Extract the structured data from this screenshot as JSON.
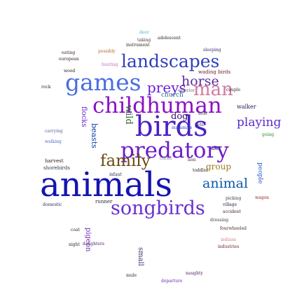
{
  "word_cloud": {
    "words": [
      {
        "text": "animals",
        "color": "#1515b0"
      },
      {
        "text": "songbirds",
        "color": "#6a2fd1"
      },
      {
        "text": "birds",
        "color": "#4b20c4"
      },
      {
        "text": "predatory",
        "color": "#6d1cc9"
      },
      {
        "text": "childhuman",
        "color": "#8a12c6"
      },
      {
        "text": "games",
        "color": "#4a6ee0"
      },
      {
        "text": "landscapes",
        "color": "#2f3fc0"
      },
      {
        "text": "family",
        "color": "#6b4a12"
      },
      {
        "text": "preys",
        "color": "#6a1fd8"
      },
      {
        "text": "man",
        "color": "#d07aa0"
      },
      {
        "text": "horse",
        "color": "#5a2aa0"
      },
      {
        "text": "playing",
        "color": "#5a2ad0"
      },
      {
        "text": "animal",
        "color": "#0b5aa8"
      },
      {
        "text": "dog",
        "color": "#3a0a6a"
      },
      {
        "text": "group",
        "color": "#9a7a1a"
      },
      {
        "text": "wading birds",
        "color": "#6a1a2a"
      },
      {
        "text": "church",
        "color": "#2a6a8a"
      },
      {
        "text": "walker",
        "color": "#1a1a5a"
      },
      {
        "text": "harvest",
        "color": "#3a1a1a"
      },
      {
        "text": "shorebirds",
        "color": "#2a3a4a"
      },
      {
        "text": "runner",
        "color": "#2a2a2a"
      },
      {
        "text": "toddler",
        "color": "#1a1a1a"
      },
      {
        "text": "daughters",
        "color": "#4a1a6a"
      },
      {
        "text": "mule",
        "color": "#2a1a2a"
      },
      {
        "text": "departure",
        "color": "#6a2ab0"
      },
      {
        "text": "naughty",
        "color": "#4a1a5a"
      },
      {
        "text": "wagon",
        "color": "#8a1a1a"
      },
      {
        "text": "village",
        "color": "#1a1a4a"
      },
      {
        "text": "accident",
        "color": "#3a1a1a"
      },
      {
        "text": "fourwheeled",
        "color": "#4a2a1a"
      },
      {
        "text": "indians",
        "color": "#e07a7a"
      },
      {
        "text": "industries",
        "color": "#6a1a1a"
      },
      {
        "text": "eating",
        "color": "#3a1a1a"
      },
      {
        "text": "european",
        "color": "#2a1a2a"
      },
      {
        "text": "deer",
        "color": "#4ab0e0"
      },
      {
        "text": "taking",
        "color": "#3a3a3a"
      },
      {
        "text": "adolescent",
        "color": "#1a1a1a"
      },
      {
        "text": "instrument",
        "color": "#2a1a1a"
      },
      {
        "text": "sleeping",
        "color": "#3a2a6a"
      },
      {
        "text": "hunting",
        "color": "#c070c0"
      },
      {
        "text": "wood",
        "color": "#1a1a1a"
      },
      {
        "text": "rock",
        "color": "#2a1a2a"
      },
      {
        "text": "couple",
        "color": "#2a2a2a"
      },
      {
        "text": "carrying",
        "color": "#5a5aa0"
      },
      {
        "text": "walking",
        "color": "#4a6ad0"
      },
      {
        "text": "dressing",
        "color": "#3a3a3a"
      },
      {
        "text": "coat",
        "color": "#2a1a1a"
      },
      {
        "text": "domestic",
        "color": "#2a2a6a"
      },
      {
        "text": "picking",
        "color": "#3a3a3a"
      },
      {
        "text": "going",
        "color": "#2a8a2a"
      },
      {
        "text": "lion",
        "color": "#3a1a1a"
      },
      {
        "text": "christ",
        "color": "#8a8a8a"
      },
      {
        "text": "pets",
        "color": "#2a2a6a"
      },
      {
        "text": "possibly",
        "color": "#aa6a2a"
      },
      {
        "text": "exterior",
        "color": "#6a6a6a"
      },
      {
        "text": "hole",
        "color": "#4a4a4a"
      },
      {
        "text": "night",
        "color": "#2a2a2a"
      },
      {
        "text": "wild",
        "color": "#2a6a2a"
      },
      {
        "text": "beasts",
        "color": "#0b3aa0"
      },
      {
        "text": "flocks",
        "color": "#6a1ac0"
      },
      {
        "text": "mammals",
        "color": "#1a4ac0"
      },
      {
        "text": "kids",
        "color": "#1a1a5a"
      },
      {
        "text": "infant",
        "color": "#2a2a4a"
      },
      {
        "text": "small",
        "color": "#3a2a6a"
      },
      {
        "text": "pigeon",
        "color": "#6a2ab0"
      },
      {
        "text": "people",
        "color": "#2a5ad0"
      },
      {
        "text": "tiger",
        "color": "#8a3ad0"
      }
    ]
  }
}
